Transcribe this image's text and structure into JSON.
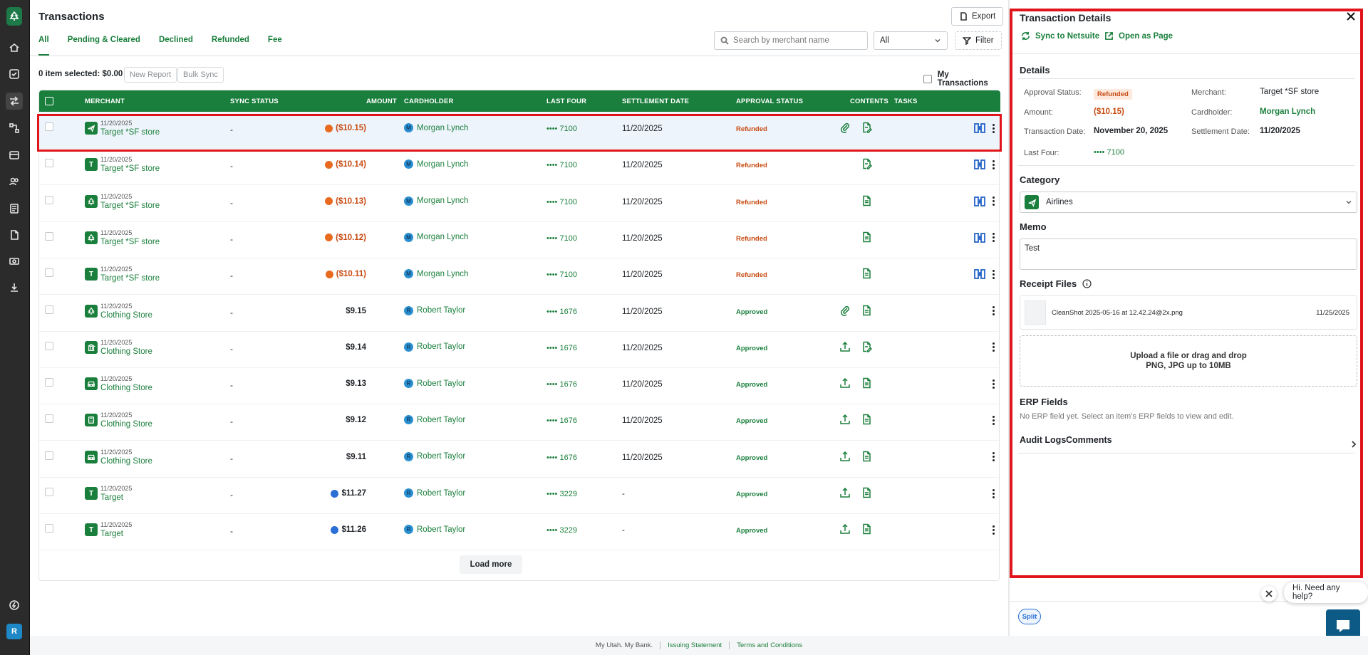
{
  "page": {
    "title": "Transactions",
    "export_label": "Export",
    "tabs": [
      "All",
      "Pending & Cleared",
      "Declined",
      "Refunded",
      "Fee"
    ],
    "search_placeholder": "Search by merchant name",
    "select_value": "All",
    "filter_label": "Filter",
    "selection_info": "0 item selected: $0.00",
    "new_report_label": "New Report",
    "bulk_sync_label": "Bulk Sync",
    "my_transactions_label": "My Transactions",
    "load_more_label": "Load more"
  },
  "table": {
    "headers": {
      "merchant": "MERCHANT",
      "sync_status": "SYNC STATUS",
      "amount": "AMOUNT",
      "cardholder": "CARDHOLDER",
      "last_four": "LAST FOUR",
      "settlement_date": "SETTLEMENT DATE",
      "approval_status": "APPROVAL STATUS",
      "contents": "CONTENTS",
      "tasks": "TASKS"
    },
    "rows": [
      {
        "date": "11/20/2025",
        "merchant": "Target *SF store",
        "icon": "airplane-icon",
        "sync": "-",
        "amount": "($10.15)",
        "amount_type": "refund",
        "cardholder": "Morgan Lynch",
        "initial": "M",
        "last_four": "•••• 7100",
        "settlement": "11/20/2025",
        "status": "Refunded",
        "attach": true,
        "upload": false,
        "doc": "doc-edit",
        "split": true
      },
      {
        "date": "11/20/2025",
        "merchant": "Target *SF store",
        "icon": "T",
        "sync": "-",
        "amount": "($10.14)",
        "amount_type": "refund",
        "cardholder": "Morgan Lynch",
        "initial": "M",
        "last_four": "•••• 7100",
        "settlement": "11/20/2025",
        "status": "Refunded",
        "attach": false,
        "upload": false,
        "doc": "doc-edit",
        "split": true
      },
      {
        "date": "11/20/2025",
        "merchant": "Target *SF store",
        "icon": "tree-icon",
        "sync": "-",
        "amount": "($10.13)",
        "amount_type": "refund",
        "cardholder": "Morgan Lynch",
        "initial": "M",
        "last_four": "•••• 7100",
        "settlement": "11/20/2025",
        "status": "Refunded",
        "attach": false,
        "upload": false,
        "doc": "doc",
        "split": true
      },
      {
        "date": "11/20/2025",
        "merchant": "Target *SF store",
        "icon": "tree-icon",
        "sync": "-",
        "amount": "($10.12)",
        "amount_type": "refund",
        "cardholder": "Morgan Lynch",
        "initial": "M",
        "last_four": "•••• 7100",
        "settlement": "11/20/2025",
        "status": "Refunded",
        "attach": false,
        "upload": false,
        "doc": "doc",
        "split": true
      },
      {
        "date": "11/20/2025",
        "merchant": "Target *SF store",
        "icon": "T",
        "sync": "-",
        "amount": "($10.11)",
        "amount_type": "refund",
        "cardholder": "Morgan Lynch",
        "initial": "M",
        "last_four": "•••• 7100",
        "settlement": "11/20/2025",
        "status": "Refunded",
        "attach": false,
        "upload": false,
        "doc": "doc",
        "split": true
      },
      {
        "date": "11/20/2025",
        "merchant": "Clothing Store",
        "icon": "tree-icon",
        "sync": "-",
        "amount": "$9.15",
        "amount_type": "normal",
        "cardholder": "Robert Taylor",
        "initial": "R",
        "last_four": "•••• 1676",
        "settlement": "11/20/2025",
        "status": "Approved",
        "attach": true,
        "upload": false,
        "doc": "doc",
        "split": false
      },
      {
        "date": "11/20/2025",
        "merchant": "Clothing Store",
        "icon": "bank-icon",
        "sync": "-",
        "amount": "$9.14",
        "amount_type": "normal",
        "cardholder": "Robert Taylor",
        "initial": "R",
        "last_four": "•••• 1676",
        "settlement": "11/20/2025",
        "status": "Approved",
        "attach": false,
        "upload": true,
        "doc": "doc-edit",
        "split": false
      },
      {
        "date": "11/20/2025",
        "merchant": "Clothing Store",
        "icon": "car-icon",
        "sync": "-",
        "amount": "$9.13",
        "amount_type": "normal",
        "cardholder": "Robert Taylor",
        "initial": "R",
        "last_four": "•••• 1676",
        "settlement": "11/20/2025",
        "status": "Approved",
        "attach": false,
        "upload": true,
        "doc": "doc",
        "split": false
      },
      {
        "date": "11/20/2025",
        "merchant": "Clothing Store",
        "icon": "calculator-icon",
        "sync": "-",
        "amount": "$9.12",
        "amount_type": "normal",
        "cardholder": "Robert Taylor",
        "initial": "R",
        "last_four": "•••• 1676",
        "settlement": "11/20/2025",
        "status": "Approved",
        "attach": false,
        "upload": true,
        "doc": "doc",
        "split": false
      },
      {
        "date": "11/20/2025",
        "merchant": "Clothing Store",
        "icon": "car-icon",
        "sync": "-",
        "amount": "$9.11",
        "amount_type": "normal",
        "cardholder": "Robert Taylor",
        "initial": "R",
        "last_four": "•••• 1676",
        "settlement": "11/20/2025",
        "status": "Approved",
        "attach": false,
        "upload": true,
        "doc": "doc",
        "split": false
      },
      {
        "date": "11/20/2025",
        "merchant": "Target",
        "icon": "T",
        "sync": "-",
        "amount": "$11.27",
        "amount_type": "pending",
        "cardholder": "Robert Taylor",
        "initial": "R",
        "last_four": "•••• 3229",
        "settlement": "-",
        "status": "Approved",
        "attach": false,
        "upload": true,
        "doc": "doc",
        "split": false
      },
      {
        "date": "11/20/2025",
        "merchant": "Target",
        "icon": "T",
        "sync": "-",
        "amount": "$11.26",
        "amount_type": "pending",
        "cardholder": "Robert Taylor",
        "initial": "R",
        "last_four": "•••• 3229",
        "settlement": "-",
        "status": "Approved",
        "attach": false,
        "upload": true,
        "doc": "doc",
        "split": false
      }
    ]
  },
  "panel": {
    "title": "Transaction Details",
    "sync_label": "Sync to Netsuite",
    "open_label": "Open as Page",
    "details_heading": "Details",
    "approval_status_label": "Approval Status:",
    "approval_status_value": "Refunded",
    "merchant_label": "Merchant:",
    "merchant_value": "Target *SF store",
    "amount_label": "Amount:",
    "amount_value": "($10.15)",
    "cardholder_label": "Cardholder:",
    "cardholder_value": "Morgan Lynch",
    "transaction_date_label": "Transaction Date:",
    "transaction_date_value": "November 20, 2025",
    "settlement_date_label": "Settlement Date:",
    "settlement_date_value": "11/20/2025",
    "last_four_label": "Last Four:",
    "last_four_value": "•••• 7100",
    "category_heading": "Category",
    "category_value": "Airlines",
    "memo_heading": "Memo",
    "memo_value": "Test",
    "receipt_heading": "Receipt Files",
    "receipt_file_name": "CleanShot 2025-05-16 at 12.42.24@2x.png",
    "receipt_file_date": "11/25/2025",
    "upload_line1": "Upload a file or drag and drop",
    "upload_line2": "PNG, JPG up to 10MB",
    "erp_heading": "ERP Fields",
    "erp_text": "No ERP field yet. Select an item's ERP fields to view and edit.",
    "audit_label": "Audit Logs",
    "comments_label": "Comments",
    "split_label": "Split"
  },
  "help": {
    "text": "Hi. Need any help?"
  },
  "footer": {
    "bank": "My Utah. My Bank.",
    "issuing": "Issuing Statement",
    "terms": "Terms and Conditions"
  },
  "user": {
    "initial": "R"
  },
  "colors": {
    "brand": "#1a7f3c",
    "refund": "#c84b12",
    "highlight": "#e0141b",
    "link_blue": "#2b6fd6"
  }
}
